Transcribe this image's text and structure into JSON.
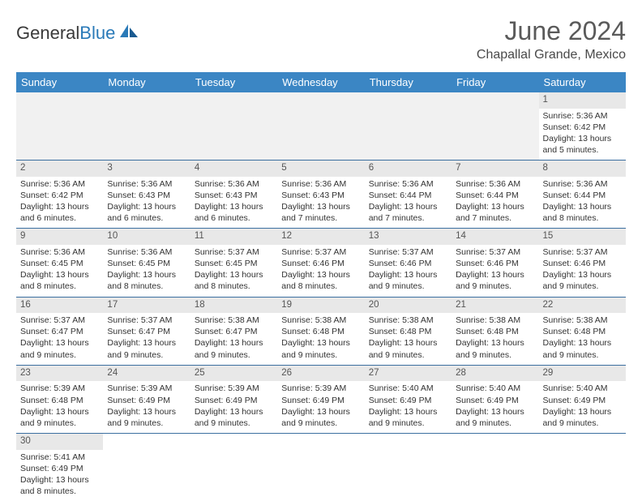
{
  "logo": {
    "text1": "General",
    "text2": "Blue"
  },
  "title": "June 2024",
  "location": "Chapallal Grande, Mexico",
  "colors": {
    "header_bg": "#3b86c4",
    "header_text": "#ffffff",
    "daynum_bg": "#e8e8e8",
    "border": "#3b6fa0",
    "logo_blue": "#2a7ab8"
  },
  "weekdays": [
    "Sunday",
    "Monday",
    "Tuesday",
    "Wednesday",
    "Thursday",
    "Friday",
    "Saturday"
  ],
  "weeks": [
    [
      null,
      null,
      null,
      null,
      null,
      null,
      {
        "n": "1",
        "sr": "Sunrise: 5:36 AM",
        "ss": "Sunset: 6:42 PM",
        "dl": "Daylight: 13 hours and 5 minutes."
      }
    ],
    [
      {
        "n": "2",
        "sr": "Sunrise: 5:36 AM",
        "ss": "Sunset: 6:42 PM",
        "dl": "Daylight: 13 hours and 6 minutes."
      },
      {
        "n": "3",
        "sr": "Sunrise: 5:36 AM",
        "ss": "Sunset: 6:43 PM",
        "dl": "Daylight: 13 hours and 6 minutes."
      },
      {
        "n": "4",
        "sr": "Sunrise: 5:36 AM",
        "ss": "Sunset: 6:43 PM",
        "dl": "Daylight: 13 hours and 6 minutes."
      },
      {
        "n": "5",
        "sr": "Sunrise: 5:36 AM",
        "ss": "Sunset: 6:43 PM",
        "dl": "Daylight: 13 hours and 7 minutes."
      },
      {
        "n": "6",
        "sr": "Sunrise: 5:36 AM",
        "ss": "Sunset: 6:44 PM",
        "dl": "Daylight: 13 hours and 7 minutes."
      },
      {
        "n": "7",
        "sr": "Sunrise: 5:36 AM",
        "ss": "Sunset: 6:44 PM",
        "dl": "Daylight: 13 hours and 7 minutes."
      },
      {
        "n": "8",
        "sr": "Sunrise: 5:36 AM",
        "ss": "Sunset: 6:44 PM",
        "dl": "Daylight: 13 hours and 8 minutes."
      }
    ],
    [
      {
        "n": "9",
        "sr": "Sunrise: 5:36 AM",
        "ss": "Sunset: 6:45 PM",
        "dl": "Daylight: 13 hours and 8 minutes."
      },
      {
        "n": "10",
        "sr": "Sunrise: 5:36 AM",
        "ss": "Sunset: 6:45 PM",
        "dl": "Daylight: 13 hours and 8 minutes."
      },
      {
        "n": "11",
        "sr": "Sunrise: 5:37 AM",
        "ss": "Sunset: 6:45 PM",
        "dl": "Daylight: 13 hours and 8 minutes."
      },
      {
        "n": "12",
        "sr": "Sunrise: 5:37 AM",
        "ss": "Sunset: 6:46 PM",
        "dl": "Daylight: 13 hours and 8 minutes."
      },
      {
        "n": "13",
        "sr": "Sunrise: 5:37 AM",
        "ss": "Sunset: 6:46 PM",
        "dl": "Daylight: 13 hours and 9 minutes."
      },
      {
        "n": "14",
        "sr": "Sunrise: 5:37 AM",
        "ss": "Sunset: 6:46 PM",
        "dl": "Daylight: 13 hours and 9 minutes."
      },
      {
        "n": "15",
        "sr": "Sunrise: 5:37 AM",
        "ss": "Sunset: 6:46 PM",
        "dl": "Daylight: 13 hours and 9 minutes."
      }
    ],
    [
      {
        "n": "16",
        "sr": "Sunrise: 5:37 AM",
        "ss": "Sunset: 6:47 PM",
        "dl": "Daylight: 13 hours and 9 minutes."
      },
      {
        "n": "17",
        "sr": "Sunrise: 5:37 AM",
        "ss": "Sunset: 6:47 PM",
        "dl": "Daylight: 13 hours and 9 minutes."
      },
      {
        "n": "18",
        "sr": "Sunrise: 5:38 AM",
        "ss": "Sunset: 6:47 PM",
        "dl": "Daylight: 13 hours and 9 minutes."
      },
      {
        "n": "19",
        "sr": "Sunrise: 5:38 AM",
        "ss": "Sunset: 6:48 PM",
        "dl": "Daylight: 13 hours and 9 minutes."
      },
      {
        "n": "20",
        "sr": "Sunrise: 5:38 AM",
        "ss": "Sunset: 6:48 PM",
        "dl": "Daylight: 13 hours and 9 minutes."
      },
      {
        "n": "21",
        "sr": "Sunrise: 5:38 AM",
        "ss": "Sunset: 6:48 PM",
        "dl": "Daylight: 13 hours and 9 minutes."
      },
      {
        "n": "22",
        "sr": "Sunrise: 5:38 AM",
        "ss": "Sunset: 6:48 PM",
        "dl": "Daylight: 13 hours and 9 minutes."
      }
    ],
    [
      {
        "n": "23",
        "sr": "Sunrise: 5:39 AM",
        "ss": "Sunset: 6:48 PM",
        "dl": "Daylight: 13 hours and 9 minutes."
      },
      {
        "n": "24",
        "sr": "Sunrise: 5:39 AM",
        "ss": "Sunset: 6:49 PM",
        "dl": "Daylight: 13 hours and 9 minutes."
      },
      {
        "n": "25",
        "sr": "Sunrise: 5:39 AM",
        "ss": "Sunset: 6:49 PM",
        "dl": "Daylight: 13 hours and 9 minutes."
      },
      {
        "n": "26",
        "sr": "Sunrise: 5:39 AM",
        "ss": "Sunset: 6:49 PM",
        "dl": "Daylight: 13 hours and 9 minutes."
      },
      {
        "n": "27",
        "sr": "Sunrise: 5:40 AM",
        "ss": "Sunset: 6:49 PM",
        "dl": "Daylight: 13 hours and 9 minutes."
      },
      {
        "n": "28",
        "sr": "Sunrise: 5:40 AM",
        "ss": "Sunset: 6:49 PM",
        "dl": "Daylight: 13 hours and 9 minutes."
      },
      {
        "n": "29",
        "sr": "Sunrise: 5:40 AM",
        "ss": "Sunset: 6:49 PM",
        "dl": "Daylight: 13 hours and 9 minutes."
      }
    ],
    [
      {
        "n": "30",
        "sr": "Sunrise: 5:41 AM",
        "ss": "Sunset: 6:49 PM",
        "dl": "Daylight: 13 hours and 8 minutes."
      },
      null,
      null,
      null,
      null,
      null,
      null
    ]
  ]
}
